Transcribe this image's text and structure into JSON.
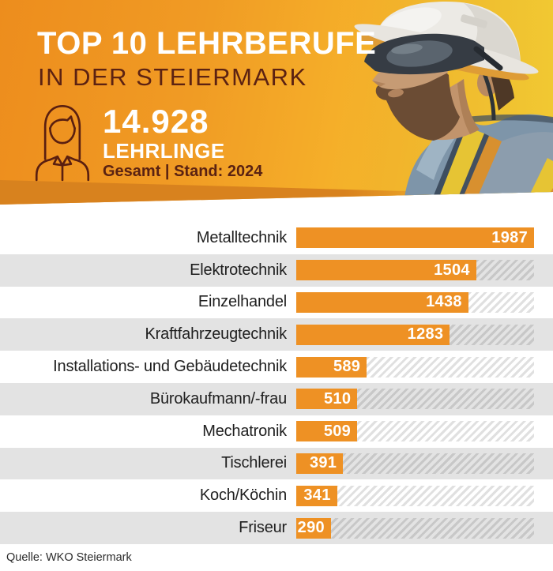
{
  "header": {
    "title": "TOP 10 LEHRBERUFE",
    "subtitle": "IN DER STEIERMARK",
    "stat": {
      "value": "14.928",
      "label": "LEHRLINGE",
      "meta": "Gesamt | Stand: 2024"
    },
    "colors": {
      "gradient_start": "#ED8D1D",
      "gradient_end": "#EFC937",
      "wedge": "#D8821E",
      "dark_accent": "#5C2212"
    }
  },
  "chart_data": {
    "type": "bar",
    "orientation": "horizontal",
    "title": "TOP 10 LEHRBERUFE IN DER STEIERMARK",
    "categories": [
      "Metalltechnik",
      "Elektrotechnik",
      "Einzelhandel",
      "Kraftfahrzeugtechnik",
      "Installations- und Gebäudetechnik",
      "Bürokaufmann/-frau",
      "Mechatronik",
      "Tischlerei",
      "Koch/Köchin",
      "Friseur"
    ],
    "values": [
      1987,
      1504,
      1438,
      1283,
      589,
      510,
      509,
      391,
      341,
      290
    ],
    "xlim": [
      0,
      1987
    ],
    "value_labels": "inside-bar-right",
    "bar_color": "#EE9124",
    "alt_row_color": "#E3E3E3",
    "track_pattern": "diagonal-hatch",
    "grid": false,
    "legend": false
  },
  "footer": {
    "source": "Quelle: WKO Steiermark"
  }
}
